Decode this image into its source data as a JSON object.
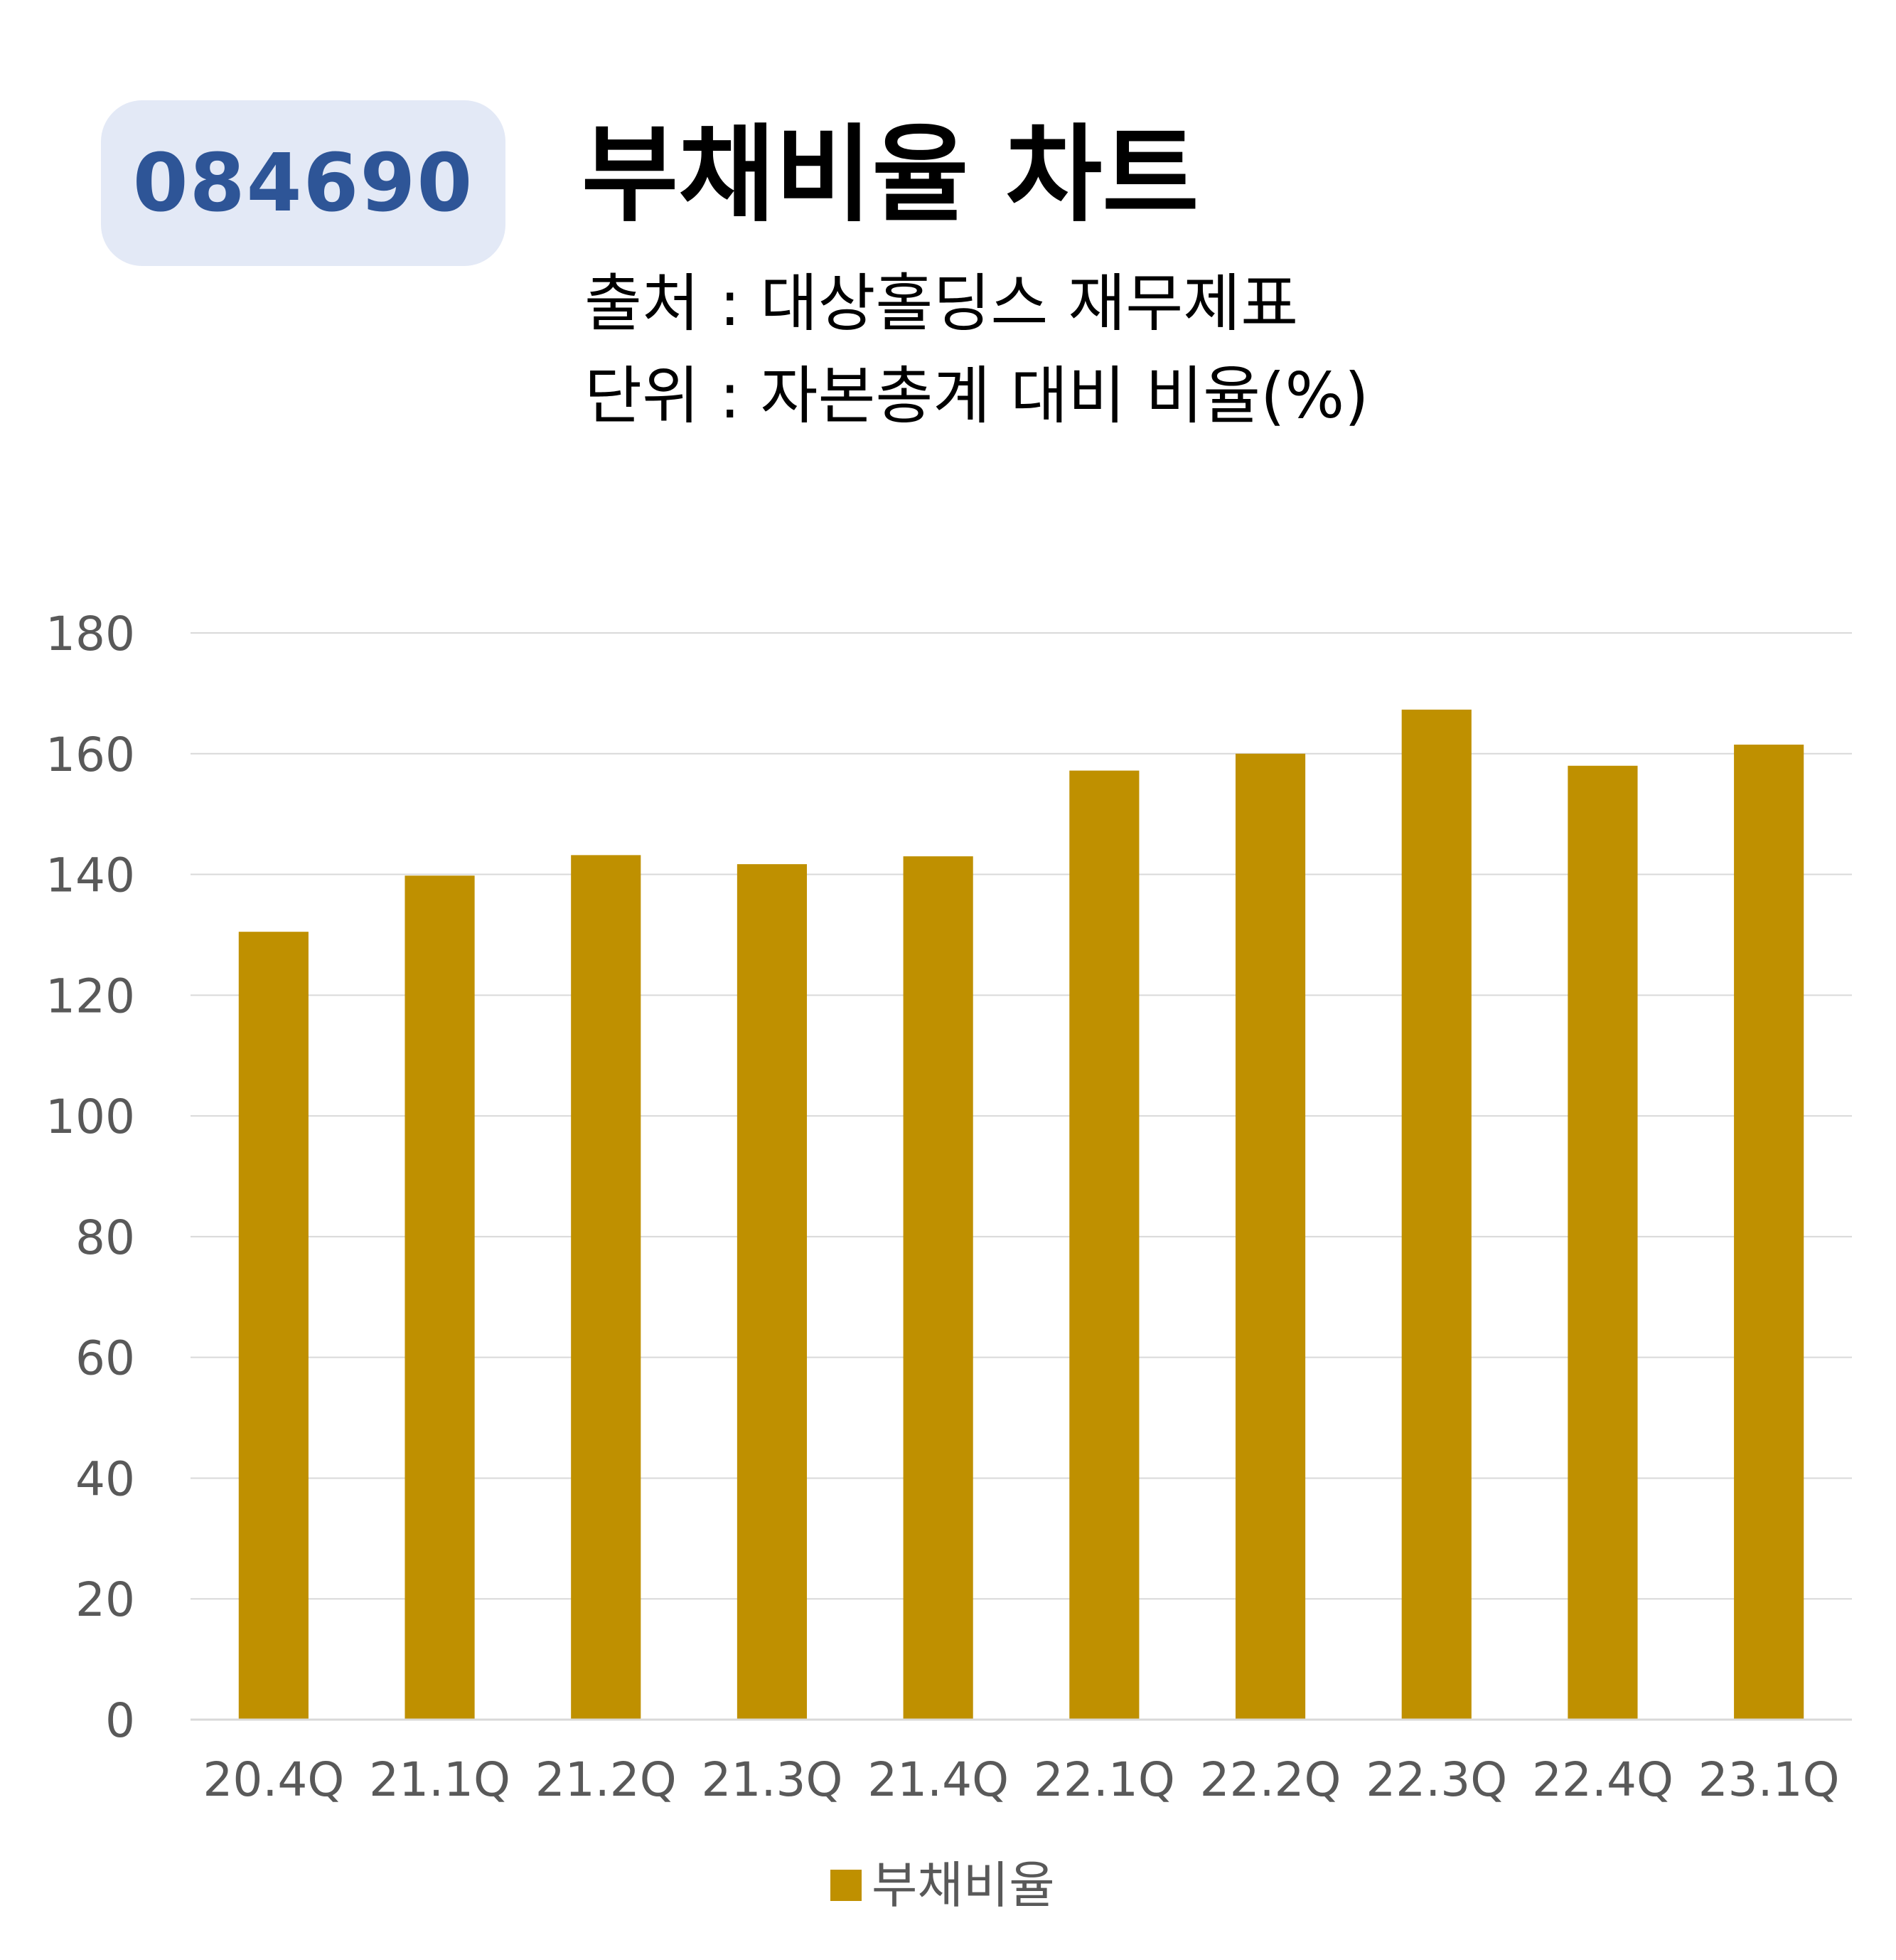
{
  "header": {
    "code": "084690",
    "title": "부채비율 차트",
    "source": "출처 : 대상홀딩스 재무제표",
    "unit": "단위 : 자본총계 대비 비율(%)"
  },
  "colors": {
    "bar": "#bf9000",
    "badge_bg": "#e3e9f6",
    "badge_text": "#2e5597",
    "gridline": "#d9d9d9",
    "axis_text": "#595959"
  },
  "chart_data": {
    "type": "bar",
    "categories": [
      "20.4Q",
      "21.1Q",
      "21.2Q",
      "21.3Q",
      "21.4Q",
      "22.1Q",
      "22.2Q",
      "22.3Q",
      "22.4Q",
      "23.1Q"
    ],
    "series": [
      {
        "name": "부채비율",
        "values": [
          130.5,
          139.8,
          143.2,
          141.7,
          143.0,
          157.2,
          160.0,
          167.3,
          158.0,
          161.5
        ]
      }
    ],
    "yticks": [
      "0",
      "20",
      "40",
      "60",
      "80",
      "100",
      "120",
      "140",
      "160",
      "180"
    ],
    "ylim": [
      0,
      180
    ],
    "grid": true,
    "legend_position": "bottom"
  }
}
